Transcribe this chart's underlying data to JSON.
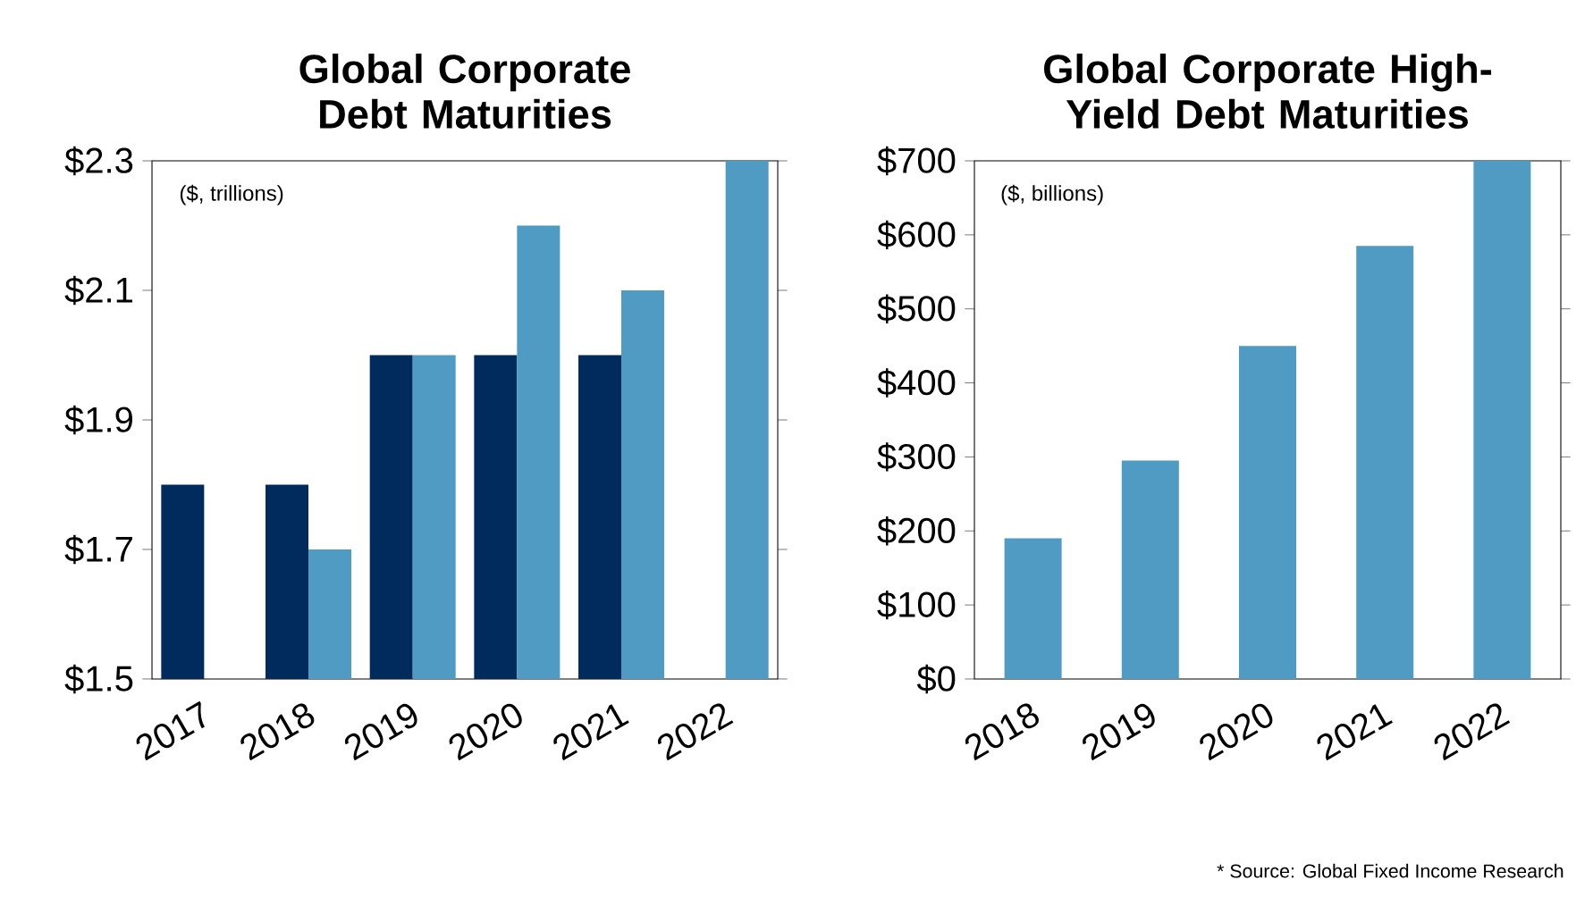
{
  "chart_data": [
    {
      "type": "bar",
      "title": "Global Corporate Debt Maturities",
      "categories": [
        "2017",
        "2018",
        "2019",
        "2020",
        "2021",
        "2022"
      ],
      "series": [
        {
          "color": "#002b5c",
          "values": [
            1.8,
            1.8,
            2.0,
            2.0,
            2.0,
            null
          ]
        },
        {
          "color": "#4f9bc4",
          "values": [
            1.5,
            1.7,
            2.0,
            2.2,
            2.1,
            2.3
          ]
        }
      ],
      "ylim": [
        1.5,
        2.3
      ],
      "yticks": [
        {
          "value": 1.5,
          "label": "$1.5"
        },
        {
          "value": 1.7,
          "label": "$1.7"
        },
        {
          "value": 1.9,
          "label": "$1.9"
        },
        {
          "value": 2.1,
          "label": "$2.1"
        },
        {
          "value": 2.3,
          "label": "$2.3"
        }
      ],
      "annotations": [
        "($, trillions)"
      ]
    },
    {
      "type": "bar",
      "title": "Global Corporate High-Yield Debt Maturities",
      "categories": [
        "2018",
        "2019",
        "2020",
        "2021",
        "2022"
      ],
      "series": [
        {
          "color": "#4f9bc4",
          "values": [
            190,
            295,
            450,
            585,
            700
          ]
        }
      ],
      "ylim": [
        0,
        700
      ],
      "yticks": [
        {
          "value": 0,
          "label": "$0"
        },
        {
          "value": 100,
          "label": "$100"
        },
        {
          "value": 200,
          "label": "$200"
        },
        {
          "value": 300,
          "label": "$300"
        },
        {
          "value": 400,
          "label": "$400"
        },
        {
          "value": 500,
          "label": "$500"
        },
        {
          "value": 600,
          "label": "$600"
        },
        {
          "value": 700,
          "label": "$700"
        }
      ],
      "annotations": [
        "($, billions)",
        "* Source: Global Fixed Income Research"
      ]
    }
  ]
}
